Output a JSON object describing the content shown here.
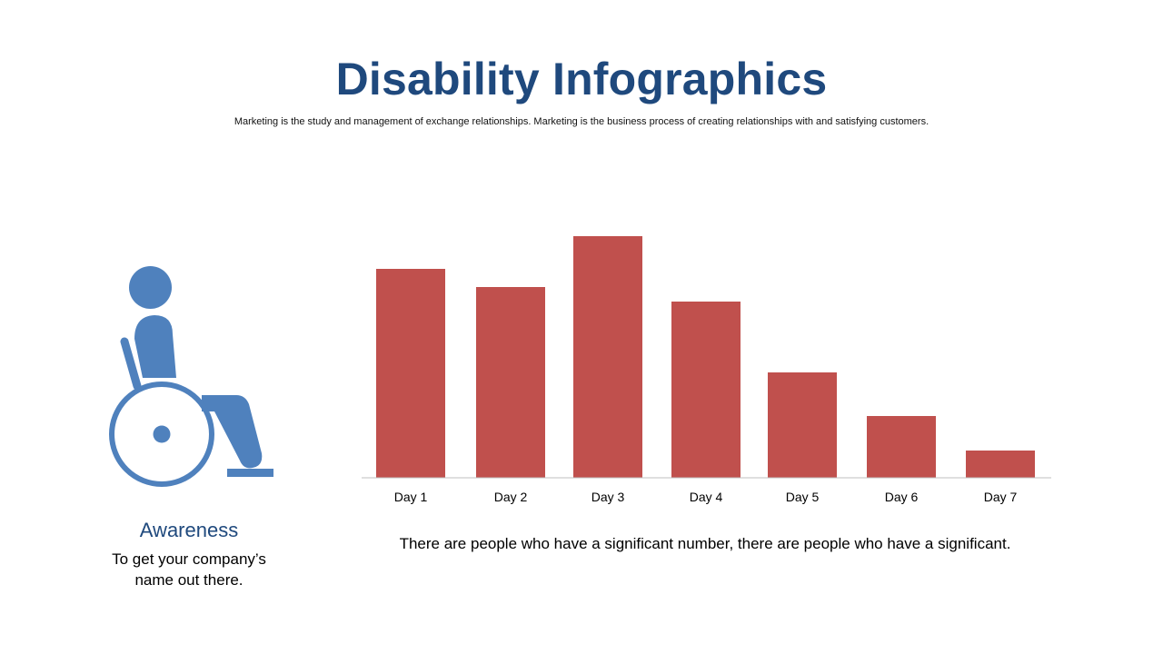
{
  "header": {
    "title": "Disability Infographics",
    "subtitle": "Marketing is the study and management of exchange relationships. Marketing is the  business process of creating relationships with and satisfying customers."
  },
  "left_panel": {
    "icon": "wheelchair-icon",
    "heading": "Awareness",
    "text": "To get your company’s name out there."
  },
  "chart_caption": "There are people who have a significant number, there are people who have a significant.",
  "colors": {
    "title": "#1f497d",
    "bar": "#c0504d",
    "icon": "#4f81bd",
    "axis": "#bfbfbf"
  },
  "chart_data": {
    "type": "bar",
    "categories": [
      "Day 1",
      "Day 2",
      "Day 3",
      "Day 4",
      "Day 5",
      "Day 6",
      "Day 7"
    ],
    "values": [
      230,
      210,
      266,
      194,
      116,
      68,
      30
    ],
    "title": "",
    "xlabel": "",
    "ylabel": "",
    "ylim": [
      0,
      266
    ],
    "grid": false,
    "legend": "none"
  }
}
